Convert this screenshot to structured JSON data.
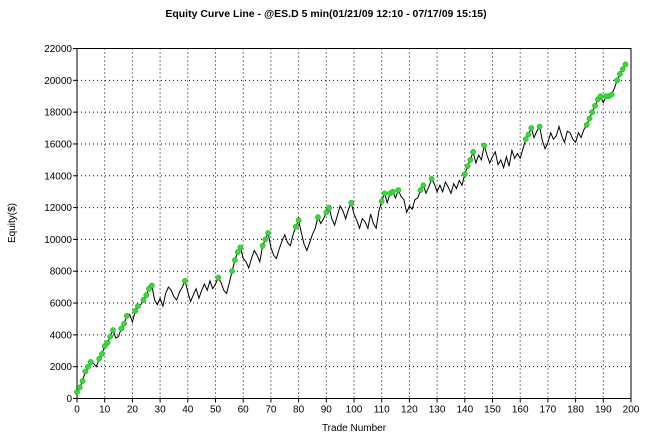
{
  "chart_data": {
    "type": "line",
    "title": "Equity Curve Line - @ES.D 5 min(01/21/09 12:10 - 07/17/09 15:15)",
    "xlabel": "Trade Number",
    "ylabel": "Equity($)",
    "xlim": [
      0,
      200
    ],
    "ylim": [
      0,
      22000
    ],
    "x_ticks": [
      "0",
      "10",
      "20",
      "30",
      "40",
      "50",
      "60",
      "70",
      "80",
      "90",
      "100",
      "110",
      "120",
      "130",
      "140",
      "150",
      "160",
      "170",
      "180",
      "190",
      "200"
    ],
    "y_ticks": [
      "0",
      "2000",
      "4000",
      "6000",
      "8000",
      "10000",
      "12000",
      "14000",
      "16000",
      "18000",
      "20000",
      "22000"
    ],
    "grid": true,
    "line_color": "#000000",
    "marker_color": "#33dd33",
    "series": [
      {
        "points": [
          [
            0,
            400
          ],
          [
            1,
            700
          ],
          [
            2,
            1100
          ],
          [
            3,
            1700
          ],
          [
            4,
            2000
          ],
          [
            5,
            2300
          ],
          [
            6,
            2200
          ],
          [
            7,
            2000
          ],
          [
            8,
            2500
          ],
          [
            9,
            2800
          ],
          [
            10,
            3300
          ],
          [
            11,
            3500
          ],
          [
            12,
            3900
          ],
          [
            13,
            4300
          ],
          [
            14,
            3800
          ],
          [
            15,
            3900
          ],
          [
            16,
            4400
          ],
          [
            17,
            4700
          ],
          [
            18,
            5200
          ],
          [
            19,
            5300
          ],
          [
            20,
            4800
          ],
          [
            21,
            5500
          ],
          [
            22,
            5800
          ],
          [
            23,
            5900
          ],
          [
            24,
            6200
          ],
          [
            25,
            6500
          ],
          [
            26,
            6900
          ],
          [
            27,
            7100
          ],
          [
            28,
            6200
          ],
          [
            29,
            5900
          ],
          [
            30,
            6300
          ],
          [
            31,
            5800
          ],
          [
            32,
            6600
          ],
          [
            33,
            7000
          ],
          [
            34,
            6800
          ],
          [
            35,
            6400
          ],
          [
            36,
            6200
          ],
          [
            37,
            6700
          ],
          [
            38,
            7000
          ],
          [
            39,
            7400
          ],
          [
            40,
            6700
          ],
          [
            41,
            6100
          ],
          [
            42,
            6500
          ],
          [
            43,
            6900
          ],
          [
            44,
            6300
          ],
          [
            45,
            6800
          ],
          [
            46,
            7200
          ],
          [
            47,
            6800
          ],
          [
            48,
            7400
          ],
          [
            49,
            6900
          ],
          [
            50,
            7200
          ],
          [
            51,
            7600
          ],
          [
            52,
            7300
          ],
          [
            53,
            6800
          ],
          [
            54,
            6600
          ],
          [
            55,
            7300
          ],
          [
            56,
            8000
          ],
          [
            57,
            8700
          ],
          [
            58,
            9200
          ],
          [
            59,
            9500
          ],
          [
            60,
            8800
          ],
          [
            61,
            8600
          ],
          [
            62,
            8200
          ],
          [
            63,
            8800
          ],
          [
            64,
            9300
          ],
          [
            65,
            9000
          ],
          [
            66,
            8600
          ],
          [
            67,
            9600
          ],
          [
            68,
            10000
          ],
          [
            69,
            10400
          ],
          [
            70,
            9500
          ],
          [
            71,
            9000
          ],
          [
            72,
            8800
          ],
          [
            73,
            9400
          ],
          [
            74,
            9900
          ],
          [
            75,
            10300
          ],
          [
            76,
            9800
          ],
          [
            77,
            9600
          ],
          [
            78,
            10300
          ],
          [
            79,
            10800
          ],
          [
            80,
            11200
          ],
          [
            81,
            10400
          ],
          [
            82,
            9700
          ],
          [
            83,
            9300
          ],
          [
            84,
            9800
          ],
          [
            85,
            10300
          ],
          [
            86,
            10700
          ],
          [
            87,
            11400
          ],
          [
            88,
            11000
          ],
          [
            89,
            11300
          ],
          [
            90,
            11700
          ],
          [
            91,
            12000
          ],
          [
            92,
            11300
          ],
          [
            93,
            10900
          ],
          [
            94,
            11500
          ],
          [
            95,
            12100
          ],
          [
            96,
            11800
          ],
          [
            97,
            11300
          ],
          [
            98,
            11900
          ],
          [
            99,
            12300
          ],
          [
            100,
            11600
          ],
          [
            101,
            11200
          ],
          [
            102,
            10700
          ],
          [
            103,
            11300
          ],
          [
            104,
            11100
          ],
          [
            105,
            10700
          ],
          [
            106,
            11600
          ],
          [
            107,
            11000
          ],
          [
            108,
            10700
          ],
          [
            109,
            11800
          ],
          [
            110,
            12400
          ],
          [
            111,
            12900
          ],
          [
            112,
            12300
          ],
          [
            113,
            12900
          ],
          [
            114,
            13000
          ],
          [
            115,
            12600
          ],
          [
            116,
            13100
          ],
          [
            117,
            12700
          ],
          [
            118,
            12500
          ],
          [
            119,
            11700
          ],
          [
            120,
            12100
          ],
          [
            121,
            11900
          ],
          [
            122,
            12500
          ],
          [
            123,
            12600
          ],
          [
            124,
            13100
          ],
          [
            125,
            13400
          ],
          [
            126,
            12900
          ],
          [
            127,
            13300
          ],
          [
            128,
            13800
          ],
          [
            129,
            13500
          ],
          [
            130,
            13000
          ],
          [
            131,
            13400
          ],
          [
            132,
            13000
          ],
          [
            133,
            13600
          ],
          [
            134,
            13300
          ],
          [
            135,
            12900
          ],
          [
            136,
            13500
          ],
          [
            137,
            13200
          ],
          [
            138,
            13700
          ],
          [
            139,
            13400
          ],
          [
            140,
            14100
          ],
          [
            141,
            14600
          ],
          [
            142,
            15000
          ],
          [
            143,
            15500
          ],
          [
            144,
            14800
          ],
          [
            145,
            15300
          ],
          [
            146,
            15000
          ],
          [
            147,
            15900
          ],
          [
            148,
            15300
          ],
          [
            149,
            14800
          ],
          [
            150,
            15200
          ],
          [
            151,
            15500
          ],
          [
            152,
            14700
          ],
          [
            153,
            15000
          ],
          [
            154,
            14500
          ],
          [
            155,
            15200
          ],
          [
            156,
            14600
          ],
          [
            157,
            15600
          ],
          [
            158,
            15100
          ],
          [
            159,
            15400
          ],
          [
            160,
            15100
          ],
          [
            161,
            15700
          ],
          [
            162,
            16300
          ],
          [
            163,
            16600
          ],
          [
            164,
            17000
          ],
          [
            165,
            16400
          ],
          [
            166,
            16800
          ],
          [
            167,
            17100
          ],
          [
            168,
            16200
          ],
          [
            169,
            15700
          ],
          [
            170,
            16100
          ],
          [
            171,
            16700
          ],
          [
            172,
            16300
          ],
          [
            173,
            16500
          ],
          [
            174,
            17100
          ],
          [
            175,
            16500
          ],
          [
            176,
            16100
          ],
          [
            177,
            16800
          ],
          [
            178,
            16700
          ],
          [
            179,
            16300
          ],
          [
            180,
            16100
          ],
          [
            181,
            16700
          ],
          [
            182,
            16400
          ],
          [
            183,
            16900
          ],
          [
            184,
            17200
          ],
          [
            185,
            17600
          ],
          [
            186,
            18000
          ],
          [
            187,
            18400
          ],
          [
            188,
            18800
          ],
          [
            189,
            19000
          ],
          [
            190,
            18600
          ],
          [
            191,
            19000
          ],
          [
            192,
            19000
          ],
          [
            193,
            19100
          ],
          [
            194,
            19500
          ],
          [
            195,
            20000
          ],
          [
            196,
            20400
          ],
          [
            197,
            20700
          ],
          [
            198,
            21000
          ]
        ],
        "highlighted_trades": [
          0,
          1,
          2,
          3,
          4,
          5,
          8,
          9,
          10,
          11,
          12,
          13,
          16,
          17,
          18,
          21,
          22,
          24,
          25,
          26,
          27,
          39,
          51,
          56,
          57,
          58,
          59,
          67,
          68,
          69,
          79,
          80,
          87,
          90,
          91,
          99,
          110,
          111,
          113,
          114,
          116,
          124,
          125,
          128,
          140,
          141,
          142,
          143,
          147,
          162,
          163,
          164,
          167,
          184,
          185,
          186,
          187,
          188,
          189,
          191,
          192,
          193,
          195,
          196,
          197,
          198
        ]
      }
    ]
  }
}
